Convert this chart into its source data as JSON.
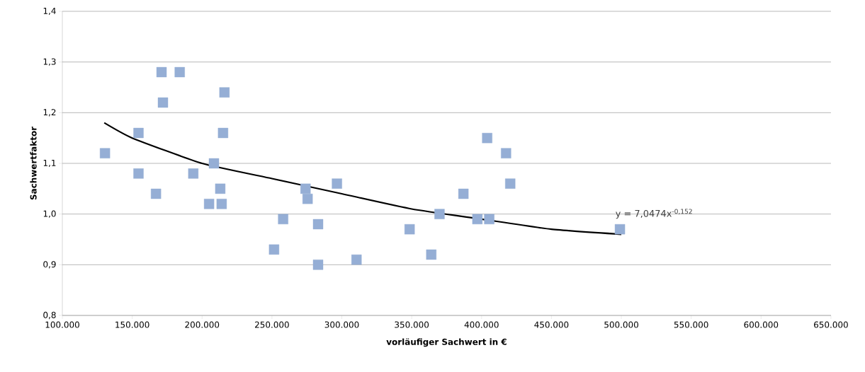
{
  "chart_data": {
    "type": "scatter",
    "xlabel": "vorläufiger Sachwert in €",
    "ylabel": "Sachwertfaktor",
    "series": [
      {
        "color": "#95aed5",
        "marker": "square",
        "x": [
          130500,
          154500,
          154500,
          167000,
          171000,
          172000,
          184000,
          193700,
          205000,
          208500,
          213000,
          214000,
          215000,
          216000,
          251500,
          258000,
          274000,
          275500,
          283000,
          283000,
          296500,
          310500,
          348500,
          364000,
          369900,
          387000,
          397000,
          404000,
          405500,
          417500,
          420500,
          499000
        ],
        "values": [
          1.12,
          1.16,
          1.08,
          1.04,
          1.28,
          1.22,
          1.28,
          1.08,
          1.02,
          1.1,
          1.05,
          1.02,
          1.16,
          1.24,
          0.93,
          0.99,
          1.05,
          1.03,
          0.98,
          0.9,
          1.06,
          0.91,
          0.97,
          0.92,
          1.0,
          1.04,
          0.99,
          1.15,
          0.99,
          1.12,
          1.06,
          0.97
        ]
      },
      {
        "type": "line",
        "color": "#000000",
        "marker": "none",
        "x": [
          130000,
          150000,
          200000,
          250000,
          300000,
          350000,
          400000,
          450000,
          500000
        ],
        "values": [
          1.18,
          1.15,
          1.1,
          1.07,
          1.04,
          1.01,
          0.99,
          0.97,
          0.96
        ]
      }
    ],
    "xlim": [
      100000,
      650000
    ],
    "xticks": [
      {
        "value": 100000,
        "label": "100.000"
      },
      {
        "value": 150000,
        "label": "150.000"
      },
      {
        "value": 200000,
        "label": "200.000"
      },
      {
        "value": 250000,
        "label": "250.000"
      },
      {
        "value": 300000,
        "label": "300.000"
      },
      {
        "value": 350000,
        "label": "350.000"
      },
      {
        "value": 400000,
        "label": "400.000"
      },
      {
        "value": 450000,
        "label": "450.000"
      },
      {
        "value": 500000,
        "label": "500.000"
      },
      {
        "value": 550000,
        "label": "550.000"
      },
      {
        "value": 600000,
        "label": "600.000"
      },
      {
        "value": 650000,
        "label": "650.000"
      }
    ],
    "ylim": [
      0.8,
      1.4
    ],
    "yticks": [
      {
        "value": 0.8,
        "label": "0,8"
      },
      {
        "value": 0.9,
        "label": "0,9"
      },
      {
        "value": 1.0,
        "label": "1,0"
      },
      {
        "value": 1.1,
        "label": "1,1"
      },
      {
        "value": 1.2,
        "label": "1,2"
      },
      {
        "value": 1.3,
        "label": "1,3"
      },
      {
        "value": 1.4,
        "label": "1,4"
      }
    ],
    "grid": "y",
    "annotations": [
      "y = 7,0474x$^{-0,152}$"
    ]
  }
}
